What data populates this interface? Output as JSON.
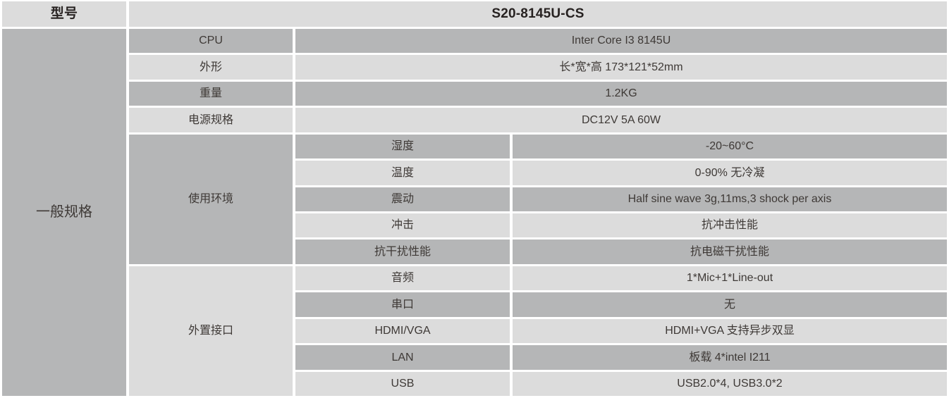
{
  "header": {
    "model_label": "型号",
    "model_value": "S20-8145U-CS"
  },
  "section_label": "一般规格",
  "simple_rows": [
    {
      "label": "CPU",
      "value": "Inter Core I3 8145U",
      "shade": "dark"
    },
    {
      "label": "外形",
      "value": "长*宽*高 173*121*52mm",
      "shade": "light"
    },
    {
      "label": "重量",
      "value": "1.2KG",
      "shade": "dark"
    },
    {
      "label": "电源规格",
      "value": "DC12V 5A 60W",
      "shade": "light"
    }
  ],
  "groups": [
    {
      "label": "使用环境",
      "shade": "dark",
      "rows": [
        {
          "label": "湿度",
          "value": "-20~60°C",
          "shade": "dark"
        },
        {
          "label": "温度",
          "value": "0-90% 无冷凝",
          "shade": "light"
        },
        {
          "label": "震动",
          "value": "Half sine wave 3g,11ms,3 shock per axis",
          "shade": "dark"
        },
        {
          "label": "冲击",
          "value": "抗冲击性能",
          "shade": "light"
        },
        {
          "label": "抗干扰性能",
          "value": "抗电磁干扰性能",
          "shade": "dark"
        }
      ]
    },
    {
      "label": "外置接口",
      "shade": "light",
      "rows": [
        {
          "label": "音频",
          "value": "1*Mic+1*Line-out",
          "shade": "light"
        },
        {
          "label": "串口",
          "value": "无",
          "shade": "dark"
        },
        {
          "label": "HDMI/VGA",
          "value": "HDMI+VGA 支持异步双显",
          "shade": "light"
        },
        {
          "label": "LAN",
          "value": "板载 4*intel I211",
          "shade": "dark"
        },
        {
          "label": "USB",
          "value": "USB2.0*4, USB3.0*2",
          "shade": "light"
        }
      ]
    }
  ],
  "colors": {
    "dark_cell": "#b5b6b7",
    "light_cell": "#dcdcdc",
    "text": "#3e3936",
    "heading_text": "#272221",
    "background": "#ffffff"
  }
}
